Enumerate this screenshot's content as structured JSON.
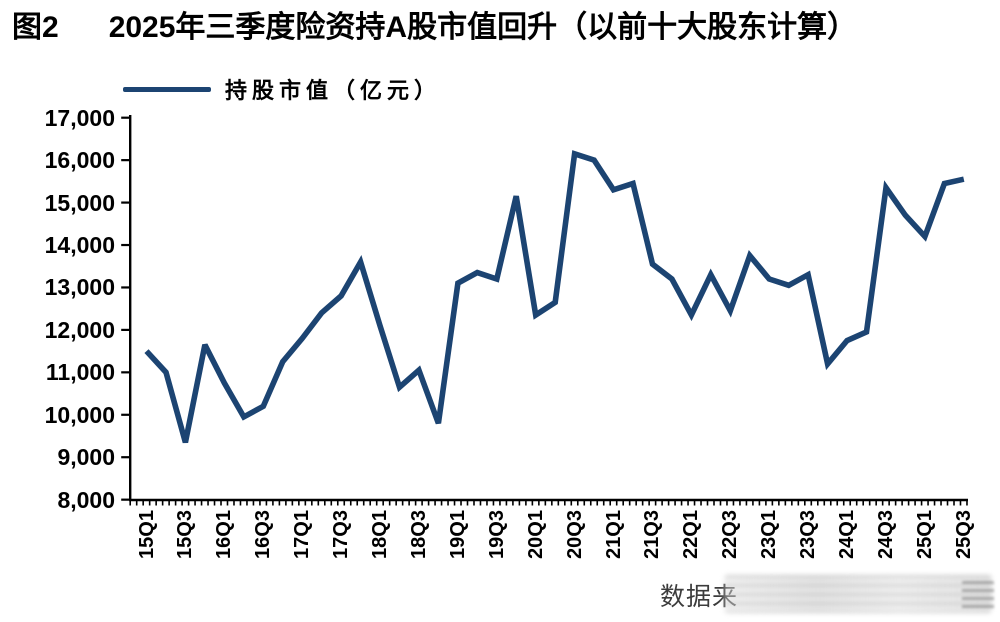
{
  "figure": {
    "label": "图2",
    "title": "2025年三季度险资持A股市值回升（以前十大股东计算）",
    "source_text": "数据来",
    "colors": {
      "line": "#1c4472",
      "axis": "#000000",
      "title_text": "#000000",
      "source_text": "#3c3c3c"
    }
  },
  "legend": {
    "label": "持股市值（亿元）"
  },
  "chart_data": {
    "type": "line",
    "title": "2025年三季度险资持A股市值回升（以前十大股东计算）",
    "xlabel": "",
    "ylabel": "",
    "ylim": [
      8000,
      17000
    ],
    "grid": false,
    "legend_position": "top-left",
    "y_ticks": [
      8000,
      9000,
      10000,
      11000,
      12000,
      13000,
      14000,
      15000,
      16000,
      17000
    ],
    "y_tick_labels": [
      "8,000",
      "9,000",
      "10,000",
      "11,000",
      "12,000",
      "13,000",
      "14,000",
      "15,000",
      "16,000",
      "17,000"
    ],
    "x_tick_labels_shown": [
      "15Q1",
      "15Q3",
      "16Q1",
      "16Q3",
      "17Q1",
      "17Q3",
      "18Q1",
      "18Q3",
      "19Q1",
      "19Q3",
      "20Q1",
      "20Q3",
      "21Q1",
      "21Q3",
      "22Q1",
      "22Q3",
      "23Q1",
      "23Q3",
      "24Q1",
      "24Q3",
      "25Q1",
      "25Q3"
    ],
    "categories": [
      "15Q1",
      "15Q2",
      "15Q3",
      "15Q4",
      "16Q1",
      "16Q2",
      "16Q3",
      "16Q4",
      "17Q1",
      "17Q2",
      "17Q3",
      "17Q4",
      "18Q1",
      "18Q2",
      "18Q3",
      "18Q4",
      "19Q1",
      "19Q2",
      "19Q3",
      "19Q4",
      "20Q1",
      "20Q2",
      "20Q3",
      "20Q4",
      "21Q1",
      "21Q2",
      "21Q3",
      "21Q4",
      "22Q1",
      "22Q2",
      "22Q3",
      "22Q4",
      "23Q1",
      "23Q2",
      "23Q3",
      "23Q4",
      "24Q1",
      "24Q2",
      "24Q3",
      "24Q4",
      "25Q1",
      "25Q2",
      "25Q3"
    ],
    "series": [
      {
        "name": "持股市值（亿元）",
        "values": [
          11500,
          11000,
          9350,
          11650,
          10750,
          9950,
          10200,
          11250,
          11800,
          12400,
          12800,
          13600,
          12100,
          10650,
          11050,
          9800,
          13100,
          13350,
          13200,
          15150,
          12350,
          12650,
          16150,
          16000,
          15300,
          15450,
          13550,
          13200,
          12350,
          13300,
          12450,
          13750,
          13200,
          13050,
          13300,
          11200,
          11750,
          11950,
          15350,
          14700,
          14200,
          15450,
          15550
        ]
      }
    ]
  }
}
